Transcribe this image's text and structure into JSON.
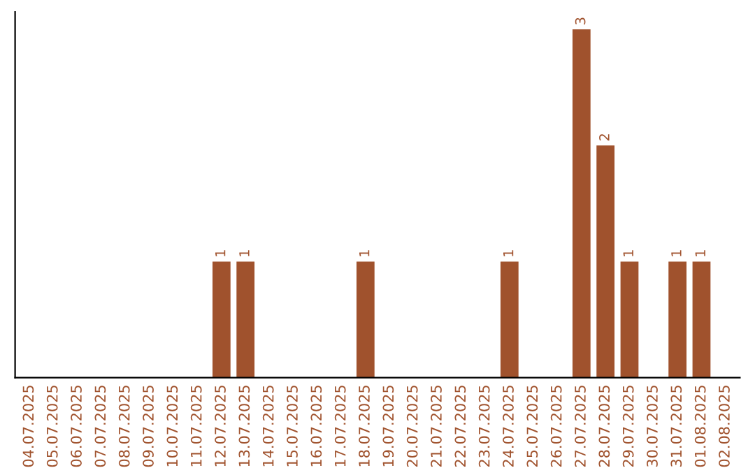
{
  "chart_data": {
    "type": "bar",
    "categories": [
      "04.07.2025",
      "05.07.2025",
      "06.07.2025",
      "07.07.2025",
      "08.07.2025",
      "09.07.2025",
      "10.07.2025",
      "11.07.2025",
      "12.07.2025",
      "13.07.2025",
      "14.07.2025",
      "15.07.2025",
      "16.07.2025",
      "17.07.2025",
      "18.07.2025",
      "19.07.2025",
      "20.07.2025",
      "21.07.2025",
      "22.07.2025",
      "23.07.2025",
      "24.07.2025",
      "25.07.2025",
      "26.07.2025",
      "27.07.2025",
      "28.07.2025",
      "29.07.2025",
      "30.07.2025",
      "31.07.2025",
      "01.08.2025",
      "02.08.2025"
    ],
    "values": [
      0,
      0,
      0,
      0,
      0,
      0,
      0,
      0,
      1,
      1,
      0,
      0,
      0,
      0,
      1,
      0,
      0,
      0,
      0,
      0,
      1,
      0,
      0,
      3,
      2,
      1,
      0,
      1,
      1,
      0
    ],
    "value_labels": [
      null,
      null,
      null,
      null,
      null,
      null,
      null,
      null,
      "1",
      "1",
      null,
      null,
      null,
      null,
      "1",
      null,
      null,
      null,
      null,
      null,
      "1",
      null,
      null,
      "3",
      "2",
      "1",
      null,
      "1",
      "1",
      null
    ],
    "color": "#a0522d",
    "grid": false,
    "legend": false
  }
}
